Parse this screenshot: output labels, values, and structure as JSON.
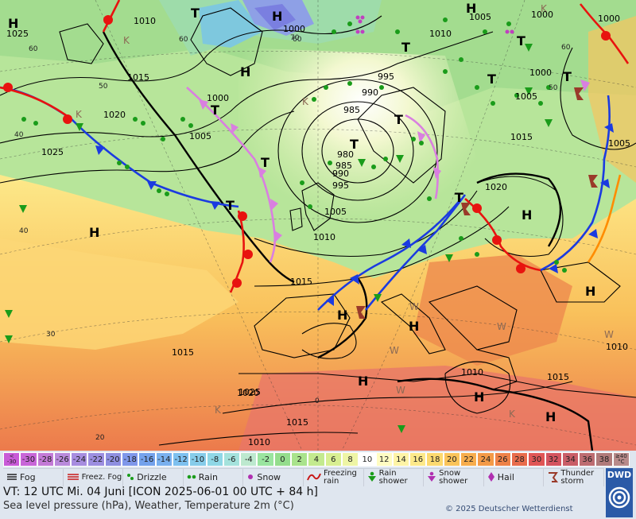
{
  "map": {
    "pressure_labels": [
      "1025",
      "1010",
      "1015",
      "1005",
      "1000",
      "1020",
      "1025",
      "1005",
      "1000",
      "990",
      "985",
      "980",
      "985",
      "990",
      "995",
      "1005",
      "1010",
      "1015",
      "1020",
      "1025",
      "1010",
      "1015",
      "1020",
      "1015",
      "1010",
      "1000",
      "1000",
      "1005",
      "995",
      "1010",
      "1015",
      "1010",
      "1005",
      "1000",
      "1015"
    ],
    "pressure_centers": [
      "H",
      "H",
      "H",
      "H",
      "H",
      "H",
      "H",
      "H",
      "H",
      "H",
      "H",
      "H",
      "T",
      "T",
      "T",
      "T",
      "T",
      "T",
      "T",
      "T",
      "T",
      "T",
      "T"
    ],
    "lat_labels": [
      "60",
      "60",
      "50",
      "40",
      "40",
      "30",
      "20",
      "60",
      "50",
      "60",
      "70"
    ],
    "zero_label": "0"
  },
  "legend": {
    "temperature_scale": {
      "unit": "°C",
      "steps": [
        "-30",
        "-30",
        "-28",
        "-26",
        "-24",
        "-22",
        "-20",
        "-18",
        "-16",
        "-14",
        "-12",
        "-10",
        "-8",
        "-6",
        "-4",
        "-2",
        "0",
        "2",
        "4",
        "6",
        "8",
        "10",
        "12",
        "14",
        "16",
        "18",
        "20",
        "22",
        "24",
        "26",
        "28",
        "30",
        "32",
        "34",
        "36",
        "38",
        "≥40"
      ],
      "first_label_lines": [
        "<",
        "-30"
      ],
      "last_label_lines": [
        "≥40",
        "°C"
      ],
      "colors": [
        "#c85ad7",
        "#c866d8",
        "#c37ad6",
        "#b98adb",
        "#a78de0",
        "#9c8ee0",
        "#8e8fe0",
        "#7f97ea",
        "#74a2ec",
        "#79b0ee",
        "#7dc0ef",
        "#86ccea",
        "#8fd7e6",
        "#a4e2dc",
        "#bde9cf",
        "#9ae5a0",
        "#94dd8d",
        "#a9e38c",
        "#c3ea8f",
        "#d8ef92",
        "#eef5a5",
        "#ffffff",
        "#fffcc2",
        "#fef4a6",
        "#fde98a",
        "#fcd96f",
        "#fac45a",
        "#f7ad4d",
        "#f39a48",
        "#ee8248",
        "#e86c4c",
        "#e05656",
        "#d4545f",
        "#c95e68",
        "#bd6d72",
        "#b07a7a",
        "#b88a8a"
      ]
    },
    "symbols": [
      {
        "icon": "fog-icon",
        "label": "Fog"
      },
      {
        "icon": "freezing-fog-icon",
        "label": "Freez. Fog"
      },
      {
        "icon": "drizzle-icon",
        "label": "Drizzle"
      },
      {
        "icon": "rain-icon",
        "label": "Rain"
      },
      {
        "icon": "snow-icon",
        "label": "Snow"
      },
      {
        "icon": "freezing-rain-icon",
        "label": "Freezing rain"
      },
      {
        "icon": "rain-shower-icon",
        "label": "Rain shower"
      },
      {
        "icon": "snow-shower-icon",
        "label": "Snow shower"
      },
      {
        "icon": "hail-icon",
        "label": "Hail"
      },
      {
        "icon": "thunderstorm-icon",
        "label": "Thunder storm"
      }
    ],
    "valid_time": "VT: 12 UTC Mi.  04 Juni [ICON 2025-06-01  00 UTC + 84 h]",
    "subtitle": "Sea level pressure (hPa), Weather, Temperature 2m (°C)",
    "copyright": "© 2025 Deutscher Wetterdienst",
    "logo_text": "DWD"
  },
  "colors": {
    "warm_front": "#e8130f",
    "cold_front": "#1b3be0",
    "occluded_front": "#d97fe0",
    "isobar": "#000000",
    "legend_bg": "#dfe6ef"
  }
}
